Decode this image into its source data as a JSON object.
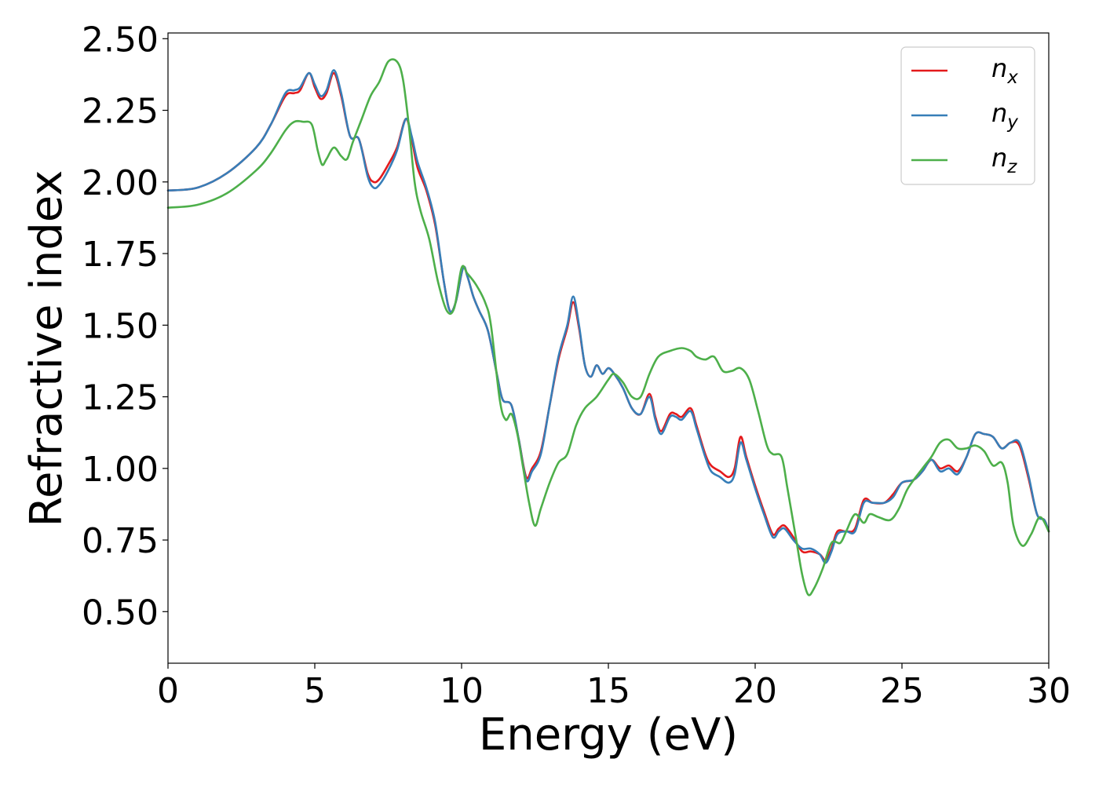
{
  "chart_data": {
    "type": "line",
    "xlabel": "Energy (eV)",
    "ylabel": "Refractive index",
    "xlim": [
      0,
      30
    ],
    "ylim": [
      0.32,
      2.52
    ],
    "x_ticks": [
      0,
      5,
      10,
      15,
      20,
      25,
      30
    ],
    "x_tick_labels": [
      "0",
      "5",
      "10",
      "15",
      "20",
      "25",
      "30"
    ],
    "y_ticks": [
      0.5,
      0.75,
      1.0,
      1.25,
      1.5,
      1.75,
      2.0,
      2.25,
      2.5
    ],
    "y_tick_labels": [
      "0.50",
      "0.75",
      "1.00",
      "1.25",
      "1.50",
      "1.75",
      "2.00",
      "2.25",
      "2.50"
    ],
    "grid": false,
    "legend_position": "top-right",
    "series": [
      {
        "name": "n_x",
        "label_base": "n",
        "label_sub": "x",
        "color": "#e41a1c",
        "points": [
          [
            0,
            1.97
          ],
          [
            1,
            1.98
          ],
          [
            2,
            2.03
          ],
          [
            3,
            2.12
          ],
          [
            3.5,
            2.2
          ],
          [
            4,
            2.3
          ],
          [
            4.3,
            2.31
          ],
          [
            4.5,
            2.32
          ],
          [
            4.8,
            2.38
          ],
          [
            5,
            2.33
          ],
          [
            5.2,
            2.29
          ],
          [
            5.4,
            2.31
          ],
          [
            5.65,
            2.38
          ],
          [
            5.9,
            2.3
          ],
          [
            6.2,
            2.16
          ],
          [
            6.5,
            2.15
          ],
          [
            6.8,
            2.03
          ],
          [
            7,
            2.0
          ],
          [
            7.2,
            2.01
          ],
          [
            7.5,
            2.06
          ],
          [
            7.8,
            2.12
          ],
          [
            8.1,
            2.22
          ],
          [
            8.3,
            2.15
          ],
          [
            8.5,
            2.05
          ],
          [
            8.8,
            1.97
          ],
          [
            9.1,
            1.85
          ],
          [
            9.4,
            1.65
          ],
          [
            9.6,
            1.55
          ],
          [
            9.8,
            1.58
          ],
          [
            10.05,
            1.7
          ],
          [
            10.2,
            1.67
          ],
          [
            10.4,
            1.6
          ],
          [
            10.6,
            1.55
          ],
          [
            10.9,
            1.48
          ],
          [
            11.2,
            1.33
          ],
          [
            11.4,
            1.24
          ],
          [
            11.7,
            1.22
          ],
          [
            11.95,
            1.1
          ],
          [
            12.2,
            0.97
          ],
          [
            12.4,
            1.0
          ],
          [
            12.7,
            1.06
          ],
          [
            13,
            1.22
          ],
          [
            13.3,
            1.38
          ],
          [
            13.6,
            1.49
          ],
          [
            13.8,
            1.58
          ],
          [
            14,
            1.49
          ],
          [
            14.2,
            1.36
          ],
          [
            14.4,
            1.32
          ],
          [
            14.6,
            1.36
          ],
          [
            14.8,
            1.33
          ],
          [
            15,
            1.35
          ],
          [
            15.2,
            1.33
          ],
          [
            15.5,
            1.28
          ],
          [
            15.8,
            1.21
          ],
          [
            16.1,
            1.19
          ],
          [
            16.4,
            1.26
          ],
          [
            16.6,
            1.18
          ],
          [
            16.8,
            1.13
          ],
          [
            17.1,
            1.19
          ],
          [
            17.3,
            1.19
          ],
          [
            17.5,
            1.18
          ],
          [
            17.8,
            1.21
          ],
          [
            18,
            1.15
          ],
          [
            18.3,
            1.05
          ],
          [
            18.5,
            1.01
          ],
          [
            18.8,
            0.99
          ],
          [
            19.1,
            0.97
          ],
          [
            19.3,
            1.0
          ],
          [
            19.5,
            1.11
          ],
          [
            19.7,
            1.04
          ],
          [
            20,
            0.94
          ],
          [
            20.3,
            0.85
          ],
          [
            20.6,
            0.77
          ],
          [
            20.8,
            0.79
          ],
          [
            21,
            0.8
          ],
          [
            21.3,
            0.76
          ],
          [
            21.6,
            0.71
          ],
          [
            21.9,
            0.71
          ],
          [
            22.2,
            0.7
          ],
          [
            22.4,
            0.68
          ],
          [
            22.6,
            0.72
          ],
          [
            22.8,
            0.78
          ],
          [
            23.1,
            0.78
          ],
          [
            23.4,
            0.79
          ],
          [
            23.7,
            0.89
          ],
          [
            24,
            0.88
          ],
          [
            24.4,
            0.88
          ],
          [
            24.7,
            0.91
          ],
          [
            25,
            0.95
          ],
          [
            25.4,
            0.96
          ],
          [
            25.7,
            0.99
          ],
          [
            26,
            1.03
          ],
          [
            26.3,
            1.0
          ],
          [
            26.6,
            1.01
          ],
          [
            26.9,
            0.99
          ],
          [
            27.2,
            1.04
          ],
          [
            27.5,
            1.12
          ],
          [
            27.8,
            1.12
          ],
          [
            28.1,
            1.11
          ],
          [
            28.4,
            1.07
          ],
          [
            28.7,
            1.09
          ],
          [
            29,
            1.08
          ],
          [
            29.3,
            0.97
          ],
          [
            29.6,
            0.84
          ],
          [
            29.85,
            0.82
          ],
          [
            30,
            0.78
          ]
        ]
      },
      {
        "name": "n_y",
        "label_base": "n",
        "label_sub": "y",
        "color": "#377eb8",
        "points": [
          [
            0,
            1.97
          ],
          [
            1,
            1.98
          ],
          [
            2,
            2.03
          ],
          [
            3,
            2.12
          ],
          [
            3.5,
            2.2
          ],
          [
            4,
            2.31
          ],
          [
            4.3,
            2.32
          ],
          [
            4.5,
            2.33
          ],
          [
            4.8,
            2.38
          ],
          [
            5,
            2.34
          ],
          [
            5.2,
            2.3
          ],
          [
            5.4,
            2.32
          ],
          [
            5.65,
            2.39
          ],
          [
            5.9,
            2.31
          ],
          [
            6.2,
            2.16
          ],
          [
            6.5,
            2.15
          ],
          [
            6.8,
            2.02
          ],
          [
            7,
            1.98
          ],
          [
            7.2,
            1.99
          ],
          [
            7.5,
            2.04
          ],
          [
            7.8,
            2.11
          ],
          [
            8.1,
            2.22
          ],
          [
            8.3,
            2.16
          ],
          [
            8.5,
            2.07
          ],
          [
            8.8,
            1.98
          ],
          [
            9.1,
            1.86
          ],
          [
            9.4,
            1.65
          ],
          [
            9.6,
            1.55
          ],
          [
            9.8,
            1.58
          ],
          [
            10.05,
            1.7
          ],
          [
            10.2,
            1.67
          ],
          [
            10.4,
            1.6
          ],
          [
            10.6,
            1.55
          ],
          [
            10.9,
            1.48
          ],
          [
            11.2,
            1.33
          ],
          [
            11.4,
            1.24
          ],
          [
            11.7,
            1.22
          ],
          [
            11.95,
            1.1
          ],
          [
            12.2,
            0.96
          ],
          [
            12.4,
            0.99
          ],
          [
            12.7,
            1.05
          ],
          [
            13,
            1.22
          ],
          [
            13.3,
            1.39
          ],
          [
            13.6,
            1.5
          ],
          [
            13.8,
            1.6
          ],
          [
            14,
            1.5
          ],
          [
            14.2,
            1.36
          ],
          [
            14.4,
            1.32
          ],
          [
            14.6,
            1.36
          ],
          [
            14.8,
            1.33
          ],
          [
            15,
            1.35
          ],
          [
            15.2,
            1.33
          ],
          [
            15.5,
            1.28
          ],
          [
            15.8,
            1.21
          ],
          [
            16.1,
            1.19
          ],
          [
            16.4,
            1.25
          ],
          [
            16.6,
            1.17
          ],
          [
            16.8,
            1.12
          ],
          [
            17.1,
            1.18
          ],
          [
            17.3,
            1.18
          ],
          [
            17.5,
            1.17
          ],
          [
            17.8,
            1.2
          ],
          [
            18,
            1.14
          ],
          [
            18.3,
            1.04
          ],
          [
            18.5,
            0.99
          ],
          [
            18.8,
            0.97
          ],
          [
            19.1,
            0.95
          ],
          [
            19.3,
            0.98
          ],
          [
            19.5,
            1.09
          ],
          [
            19.7,
            1.03
          ],
          [
            20,
            0.93
          ],
          [
            20.3,
            0.84
          ],
          [
            20.6,
            0.76
          ],
          [
            20.8,
            0.78
          ],
          [
            21,
            0.79
          ],
          [
            21.3,
            0.75
          ],
          [
            21.6,
            0.72
          ],
          [
            21.9,
            0.72
          ],
          [
            22.2,
            0.7
          ],
          [
            22.4,
            0.67
          ],
          [
            22.6,
            0.71
          ],
          [
            22.8,
            0.77
          ],
          [
            23.1,
            0.78
          ],
          [
            23.4,
            0.78
          ],
          [
            23.7,
            0.88
          ],
          [
            24,
            0.88
          ],
          [
            24.4,
            0.88
          ],
          [
            24.7,
            0.9
          ],
          [
            25,
            0.95
          ],
          [
            25.4,
            0.96
          ],
          [
            25.7,
            0.99
          ],
          [
            26,
            1.03
          ],
          [
            26.3,
            0.99
          ],
          [
            26.6,
            1.0
          ],
          [
            26.9,
            0.98
          ],
          [
            27.2,
            1.04
          ],
          [
            27.5,
            1.12
          ],
          [
            27.8,
            1.12
          ],
          [
            28.1,
            1.11
          ],
          [
            28.4,
            1.07
          ],
          [
            28.7,
            1.09
          ],
          [
            29,
            1.09
          ],
          [
            29.3,
            0.98
          ],
          [
            29.6,
            0.84
          ],
          [
            29.85,
            0.82
          ],
          [
            30,
            0.78
          ]
        ]
      },
      {
        "name": "n_z",
        "label_base": "n",
        "label_sub": "z",
        "color": "#4daf4a",
        "points": [
          [
            0,
            1.91
          ],
          [
            1,
            1.92
          ],
          [
            2,
            1.96
          ],
          [
            3,
            2.04
          ],
          [
            3.5,
            2.1
          ],
          [
            4,
            2.18
          ],
          [
            4.3,
            2.21
          ],
          [
            4.6,
            2.21
          ],
          [
            4.9,
            2.2
          ],
          [
            5.1,
            2.11
          ],
          [
            5.25,
            2.06
          ],
          [
            5.4,
            2.08
          ],
          [
            5.65,
            2.12
          ],
          [
            5.9,
            2.09
          ],
          [
            6.1,
            2.08
          ],
          [
            6.3,
            2.14
          ],
          [
            6.6,
            2.22
          ],
          [
            6.9,
            2.3
          ],
          [
            7.2,
            2.35
          ],
          [
            7.5,
            2.42
          ],
          [
            7.8,
            2.42
          ],
          [
            8,
            2.36
          ],
          [
            8.2,
            2.2
          ],
          [
            8.4,
            2.0
          ],
          [
            8.6,
            1.9
          ],
          [
            8.9,
            1.8
          ],
          [
            9.2,
            1.65
          ],
          [
            9.5,
            1.55
          ],
          [
            9.75,
            1.56
          ],
          [
            10,
            1.7
          ],
          [
            10.2,
            1.68
          ],
          [
            10.5,
            1.64
          ],
          [
            10.8,
            1.58
          ],
          [
            11,
            1.5
          ],
          [
            11.3,
            1.24
          ],
          [
            11.5,
            1.17
          ],
          [
            11.7,
            1.19
          ],
          [
            11.9,
            1.12
          ],
          [
            12.1,
            1.0
          ],
          [
            12.3,
            0.88
          ],
          [
            12.5,
            0.8
          ],
          [
            12.7,
            0.86
          ],
          [
            13,
            0.95
          ],
          [
            13.3,
            1.02
          ],
          [
            13.6,
            1.05
          ],
          [
            13.9,
            1.15
          ],
          [
            14.2,
            1.21
          ],
          [
            14.6,
            1.25
          ],
          [
            15,
            1.31
          ],
          [
            15.2,
            1.33
          ],
          [
            15.5,
            1.3
          ],
          [
            15.8,
            1.25
          ],
          [
            16.1,
            1.25
          ],
          [
            16.4,
            1.33
          ],
          [
            16.7,
            1.39
          ],
          [
            17.1,
            1.41
          ],
          [
            17.5,
            1.42
          ],
          [
            17.8,
            1.41
          ],
          [
            18,
            1.39
          ],
          [
            18.3,
            1.38
          ],
          [
            18.6,
            1.39
          ],
          [
            18.9,
            1.34
          ],
          [
            19.2,
            1.34
          ],
          [
            19.5,
            1.35
          ],
          [
            19.8,
            1.31
          ],
          [
            20.1,
            1.2
          ],
          [
            20.4,
            1.08
          ],
          [
            20.6,
            1.05
          ],
          [
            20.9,
            1.04
          ],
          [
            21.1,
            0.93
          ],
          [
            21.4,
            0.75
          ],
          [
            21.6,
            0.63
          ],
          [
            21.8,
            0.56
          ],
          [
            22,
            0.58
          ],
          [
            22.3,
            0.65
          ],
          [
            22.6,
            0.74
          ],
          [
            22.9,
            0.74
          ],
          [
            23.1,
            0.78
          ],
          [
            23.4,
            0.84
          ],
          [
            23.7,
            0.81
          ],
          [
            23.9,
            0.84
          ],
          [
            24.2,
            0.83
          ],
          [
            24.6,
            0.82
          ],
          [
            24.9,
            0.86
          ],
          [
            25.2,
            0.93
          ],
          [
            25.7,
            1.0
          ],
          [
            26,
            1.04
          ],
          [
            26.3,
            1.09
          ],
          [
            26.6,
            1.1
          ],
          [
            26.9,
            1.07
          ],
          [
            27.2,
            1.07
          ],
          [
            27.5,
            1.08
          ],
          [
            27.8,
            1.06
          ],
          [
            28.1,
            1.01
          ],
          [
            28.4,
            1.02
          ],
          [
            28.6,
            0.95
          ],
          [
            28.8,
            0.8
          ],
          [
            29.1,
            0.73
          ],
          [
            29.4,
            0.77
          ],
          [
            29.7,
            0.83
          ],
          [
            30,
            0.78
          ]
        ]
      }
    ]
  }
}
